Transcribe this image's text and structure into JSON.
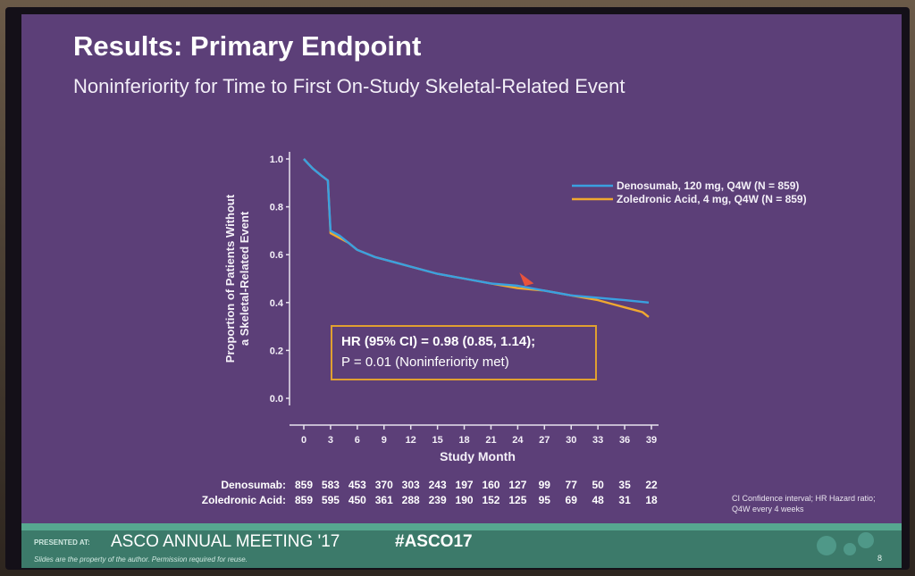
{
  "slide": {
    "title": "Results: Primary Endpoint",
    "subtitle": "Noninferiority for Time to First On-Study Skeletal-Related Event",
    "hr_line1": "HR (95% CI) = 0.98 (0.85, 1.14);",
    "hr_line2": "P = 0.01 (Noninferiority met)",
    "footnote_line1": "CI Confidence interval; HR Hazard ratio;",
    "footnote_line2": "Q4W every 4 weeks",
    "footer_presented": "PRESENTED AT:",
    "footer_meeting": "ASCO ANNUAL MEETING '17",
    "footer_hashtag": "#ASCO17",
    "footer_disclaimer": "Slides are the property of the author. Permission required for reuse.",
    "page_number": "8"
  },
  "chart_data": {
    "type": "line",
    "title": "",
    "xlabel": "Study Month",
    "ylabel_line1": "Proportion of Patients Without",
    "ylabel_line2": "a Skeletal-Related Event",
    "xlim": [
      0,
      39
    ],
    "ylim": [
      0.0,
      1.0
    ],
    "x_ticks": [
      "0",
      "3",
      "6",
      "9",
      "12",
      "15",
      "18",
      "21",
      "24",
      "27",
      "30",
      "33",
      "36",
      "39"
    ],
    "y_ticks": [
      "0.0",
      "0.2",
      "0.4",
      "0.6",
      "0.8",
      "1.0"
    ],
    "legend_position": "top-right",
    "colors": {
      "denosumab": "#3aa0e0",
      "zoledronic": "#f0a830"
    },
    "series": [
      {
        "name": "Denosumab, 120 mg, Q4W (N = 859)",
        "risk_label": "Denosumab:",
        "points": [
          [
            0,
            1.0
          ],
          [
            0.5,
            0.98
          ],
          [
            1,
            0.96
          ],
          [
            2,
            0.93
          ],
          [
            2.7,
            0.91
          ],
          [
            3,
            0.7
          ],
          [
            4,
            0.68
          ],
          [
            5,
            0.65
          ],
          [
            6,
            0.62
          ],
          [
            8,
            0.59
          ],
          [
            10,
            0.57
          ],
          [
            12,
            0.55
          ],
          [
            15,
            0.52
          ],
          [
            18,
            0.5
          ],
          [
            21,
            0.48
          ],
          [
            24,
            0.47
          ],
          [
            27,
            0.45
          ],
          [
            30,
            0.43
          ],
          [
            33,
            0.42
          ],
          [
            36,
            0.41
          ],
          [
            38.7,
            0.4
          ]
        ],
        "at_risk": [
          859,
          583,
          453,
          370,
          303,
          243,
          197,
          160,
          127,
          99,
          77,
          50,
          35,
          22
        ]
      },
      {
        "name": "Zoledronic Acid, 4 mg, Q4W (N = 859)",
        "risk_label": "Zoledronic Acid:",
        "points": [
          [
            0,
            1.0
          ],
          [
            0.5,
            0.98
          ],
          [
            1,
            0.96
          ],
          [
            2,
            0.93
          ],
          [
            2.7,
            0.91
          ],
          [
            3,
            0.69
          ],
          [
            4,
            0.67
          ],
          [
            5,
            0.65
          ],
          [
            6,
            0.62
          ],
          [
            8,
            0.59
          ],
          [
            10,
            0.57
          ],
          [
            12,
            0.55
          ],
          [
            15,
            0.52
          ],
          [
            18,
            0.5
          ],
          [
            21,
            0.48
          ],
          [
            24,
            0.46
          ],
          [
            27,
            0.45
          ],
          [
            30,
            0.43
          ],
          [
            33,
            0.41
          ],
          [
            35,
            0.39
          ],
          [
            36,
            0.38
          ],
          [
            37,
            0.37
          ],
          [
            38,
            0.36
          ],
          [
            38.7,
            0.34
          ]
        ],
        "at_risk": [
          859,
          595,
          450,
          361,
          288,
          239,
          190,
          152,
          125,
          95,
          69,
          48,
          31,
          18
        ]
      }
    ]
  }
}
